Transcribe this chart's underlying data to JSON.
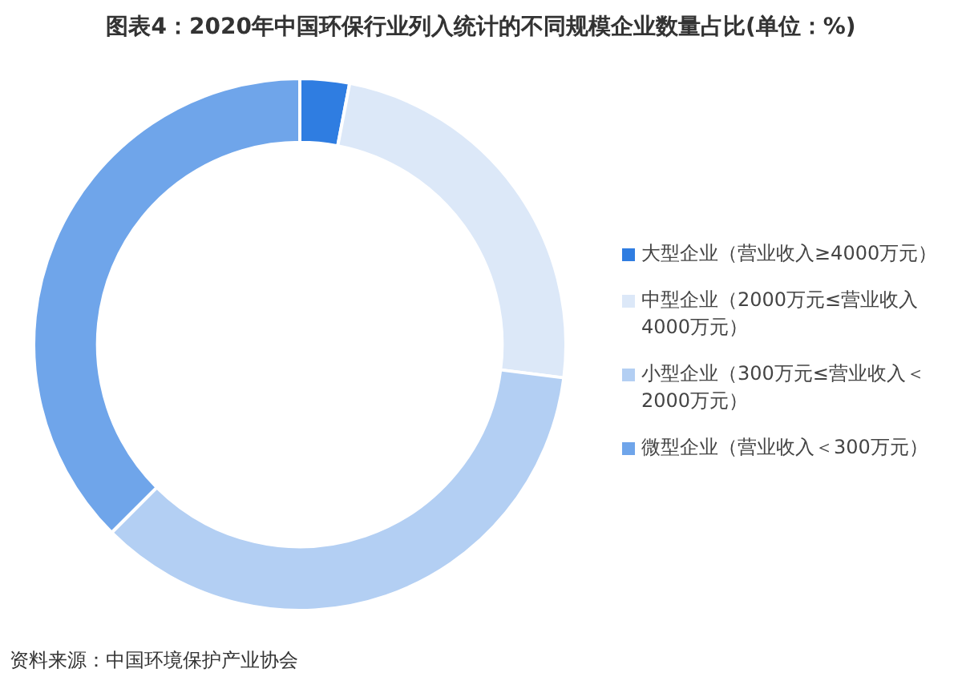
{
  "chart_data": {
    "type": "donut",
    "title": "图表4：2020年中国环保行业列入统计的不同规模企业数量占比(单位：%)",
    "categories": [
      "大型企业（营业收入≥4000万元）",
      "中型企业（2000万元≤营业收入4000万元）",
      "小型企业（300万元≤营业收入＜2000万元）",
      "微型企业（营业收入＜300万元）"
    ],
    "values": [
      3,
      24,
      35.5,
      37.5
    ],
    "colors": [
      "#2f7de1",
      "#dce8f8",
      "#b3cff3",
      "#6fa5ea"
    ],
    "legend": "right",
    "annotations": [
      "资料来源：中国环境保护产业协会"
    ]
  }
}
